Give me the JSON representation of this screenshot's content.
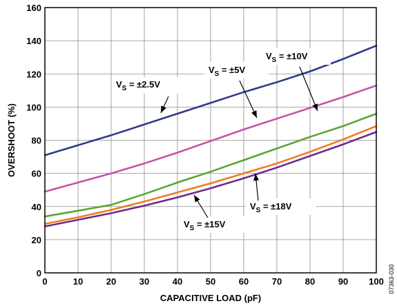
{
  "chart_data": {
    "type": "line",
    "xlabel": "CAPACITIVE LOAD (pF)",
    "ylabel": "OVERSHOOT (%)",
    "xlim": [
      0,
      100
    ],
    "ylim": [
      0,
      160
    ],
    "xticks": [
      0,
      10,
      20,
      30,
      40,
      50,
      60,
      70,
      80,
      90,
      100
    ],
    "yticks": [
      0,
      20,
      40,
      60,
      80,
      100,
      120,
      140,
      160
    ],
    "grid": true,
    "figure_id": "07363-030",
    "x": [
      0,
      10,
      20,
      30,
      40,
      50,
      60,
      70,
      80,
      90,
      100
    ],
    "series": [
      {
        "color": "#2e3a87",
        "values": [
          71,
          77,
          83,
          89.5,
          96,
          102.5,
          109,
          115,
          121.5,
          129,
          137
        ]
      },
      {
        "color": "#c452a8",
        "values": [
          49,
          54.5,
          60,
          66,
          72.5,
          79.5,
          86.5,
          93,
          99.5,
          106,
          113
        ]
      },
      {
        "color": "#5aa532",
        "values": [
          34,
          37.5,
          41,
          47.5,
          54.5,
          61,
          68,
          75,
          82,
          88.5,
          96
        ]
      },
      {
        "color": "#f07b22",
        "values": [
          29.5,
          33.5,
          38,
          43,
          48.5,
          54,
          60,
          66,
          73,
          80.5,
          88.5
        ]
      },
      {
        "color": "#6a2c8a",
        "values": [
          28,
          32,
          36,
          40.5,
          45.5,
          51,
          57,
          63.5,
          70.5,
          77.5,
          85
        ]
      }
    ],
    "annotations": [
      {
        "main": "V",
        "sub": "S",
        "rest": " = ±2.5V"
      },
      {
        "main": "V",
        "sub": "S",
        "rest": " = ±5V"
      },
      {
        "main": "V",
        "sub": "S",
        "rest": " = ±10V"
      },
      {
        "main": "V",
        "sub": "S",
        "rest": " = ±15V"
      },
      {
        "main": "V",
        "sub": "S",
        "rest": " = ±18V"
      }
    ]
  }
}
